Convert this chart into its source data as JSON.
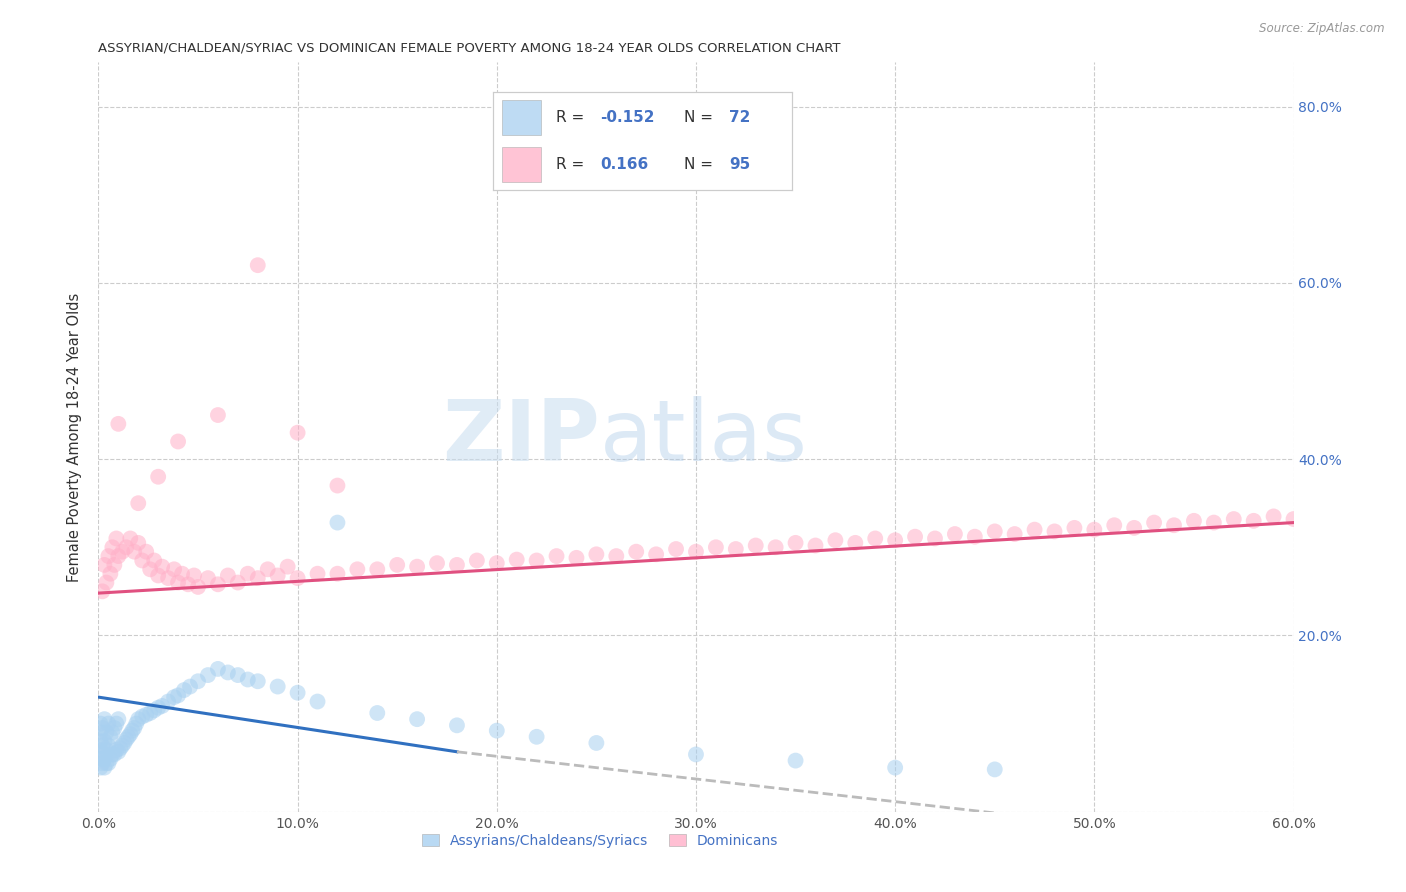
{
  "title": "ASSYRIAN/CHALDEAN/SYRIAC VS DOMINICAN FEMALE POVERTY AMONG 18-24 YEAR OLDS CORRELATION CHART",
  "source": "Source: ZipAtlas.com",
  "ylabel": "Female Poverty Among 18-24 Year Olds",
  "xlim": [
    0.0,
    0.6
  ],
  "ylim": [
    0.0,
    0.85
  ],
  "color_blue": "#a8d0f0",
  "color_pink": "#ffb0c8",
  "color_blue_line": "#3070c0",
  "color_pink_line": "#e05080",
  "color_dashed": "#bbbbbb",
  "blue_line_x": [
    0.0,
    0.18
  ],
  "blue_line_y": [
    0.13,
    0.068
  ],
  "dashed_line_x": [
    0.18,
    0.6
  ],
  "dashed_line_y": [
    0.068,
    -0.04
  ],
  "pink_line_x": [
    0.0,
    0.6
  ],
  "pink_line_y": [
    0.248,
    0.328
  ],
  "assyrian_x": [
    0.001,
    0.001,
    0.001,
    0.001,
    0.001,
    0.001,
    0.002,
    0.002,
    0.002,
    0.002,
    0.003,
    0.003,
    0.003,
    0.003,
    0.004,
    0.004,
    0.004,
    0.005,
    0.005,
    0.005,
    0.006,
    0.006,
    0.007,
    0.007,
    0.008,
    0.008,
    0.009,
    0.009,
    0.01,
    0.01,
    0.011,
    0.012,
    0.013,
    0.014,
    0.015,
    0.016,
    0.017,
    0.018,
    0.019,
    0.02,
    0.022,
    0.024,
    0.026,
    0.028,
    0.03,
    0.032,
    0.035,
    0.038,
    0.04,
    0.043,
    0.046,
    0.05,
    0.055,
    0.06,
    0.065,
    0.07,
    0.075,
    0.08,
    0.09,
    0.1,
    0.11,
    0.12,
    0.14,
    0.16,
    0.18,
    0.2,
    0.22,
    0.25,
    0.3,
    0.35,
    0.4,
    0.45
  ],
  "assyrian_y": [
    0.05,
    0.06,
    0.07,
    0.08,
    0.09,
    0.1,
    0.055,
    0.065,
    0.075,
    0.095,
    0.05,
    0.06,
    0.08,
    0.105,
    0.055,
    0.07,
    0.09,
    0.055,
    0.075,
    0.1,
    0.06,
    0.085,
    0.065,
    0.09,
    0.065,
    0.095,
    0.07,
    0.1,
    0.068,
    0.105,
    0.072,
    0.075,
    0.078,
    0.082,
    0.085,
    0.088,
    0.092,
    0.095,
    0.1,
    0.105,
    0.108,
    0.11,
    0.112,
    0.115,
    0.118,
    0.12,
    0.125,
    0.13,
    0.132,
    0.138,
    0.142,
    0.148,
    0.155,
    0.162,
    0.158,
    0.155,
    0.15,
    0.148,
    0.142,
    0.135,
    0.125,
    0.328,
    0.112,
    0.105,
    0.098,
    0.092,
    0.085,
    0.078,
    0.065,
    0.058,
    0.05,
    0.048
  ],
  "dominican_x": [
    0.002,
    0.003,
    0.004,
    0.005,
    0.006,
    0.007,
    0.008,
    0.009,
    0.01,
    0.012,
    0.014,
    0.016,
    0.018,
    0.02,
    0.022,
    0.024,
    0.026,
    0.028,
    0.03,
    0.032,
    0.035,
    0.038,
    0.04,
    0.042,
    0.045,
    0.048,
    0.05,
    0.055,
    0.06,
    0.065,
    0.07,
    0.075,
    0.08,
    0.085,
    0.09,
    0.095,
    0.1,
    0.11,
    0.12,
    0.13,
    0.14,
    0.15,
    0.16,
    0.17,
    0.18,
    0.19,
    0.2,
    0.21,
    0.22,
    0.23,
    0.24,
    0.25,
    0.26,
    0.27,
    0.28,
    0.29,
    0.3,
    0.31,
    0.32,
    0.33,
    0.34,
    0.35,
    0.36,
    0.37,
    0.38,
    0.39,
    0.4,
    0.41,
    0.42,
    0.43,
    0.44,
    0.45,
    0.46,
    0.47,
    0.48,
    0.49,
    0.5,
    0.51,
    0.52,
    0.53,
    0.54,
    0.55,
    0.56,
    0.57,
    0.58,
    0.59,
    0.6,
    0.01,
    0.02,
    0.03,
    0.04,
    0.06,
    0.08,
    0.1,
    0.12
  ],
  "dominican_y": [
    0.25,
    0.28,
    0.26,
    0.29,
    0.27,
    0.3,
    0.28,
    0.31,
    0.29,
    0.295,
    0.3,
    0.31,
    0.295,
    0.305,
    0.285,
    0.295,
    0.275,
    0.285,
    0.268,
    0.278,
    0.265,
    0.275,
    0.26,
    0.27,
    0.258,
    0.268,
    0.255,
    0.265,
    0.258,
    0.268,
    0.26,
    0.27,
    0.265,
    0.275,
    0.268,
    0.278,
    0.265,
    0.27,
    0.27,
    0.275,
    0.275,
    0.28,
    0.278,
    0.282,
    0.28,
    0.285,
    0.282,
    0.286,
    0.285,
    0.29,
    0.288,
    0.292,
    0.29,
    0.295,
    0.292,
    0.298,
    0.295,
    0.3,
    0.298,
    0.302,
    0.3,
    0.305,
    0.302,
    0.308,
    0.305,
    0.31,
    0.308,
    0.312,
    0.31,
    0.315,
    0.312,
    0.318,
    0.315,
    0.32,
    0.318,
    0.322,
    0.32,
    0.325,
    0.322,
    0.328,
    0.325,
    0.33,
    0.328,
    0.332,
    0.33,
    0.335,
    0.332,
    0.44,
    0.35,
    0.38,
    0.42,
    0.45,
    0.62,
    0.43,
    0.37
  ]
}
